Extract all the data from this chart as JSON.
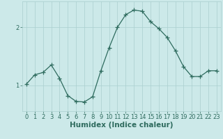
{
  "x": [
    0,
    1,
    2,
    3,
    4,
    5,
    6,
    7,
    8,
    9,
    10,
    11,
    12,
    13,
    14,
    15,
    16,
    17,
    18,
    19,
    20,
    21,
    22,
    23
  ],
  "y": [
    1.02,
    1.18,
    1.22,
    1.35,
    1.12,
    0.82,
    0.72,
    0.71,
    0.8,
    1.25,
    1.65,
    2.0,
    2.22,
    2.3,
    2.28,
    2.1,
    1.98,
    1.83,
    1.6,
    1.32,
    1.15,
    1.15,
    1.25,
    1.25
  ],
  "line_color": "#2e6b5e",
  "marker": "+",
  "marker_size": 4,
  "bg_color": "#cce9e9",
  "grid_color": "#aacfcf",
  "xlabel": "Humidex (Indice chaleur)",
  "yticks": [
    1,
    2
  ],
  "xlim": [
    -0.5,
    23.5
  ],
  "ylim": [
    0.55,
    2.45
  ],
  "label_fontsize": 7.5,
  "tick_fontsize": 6
}
